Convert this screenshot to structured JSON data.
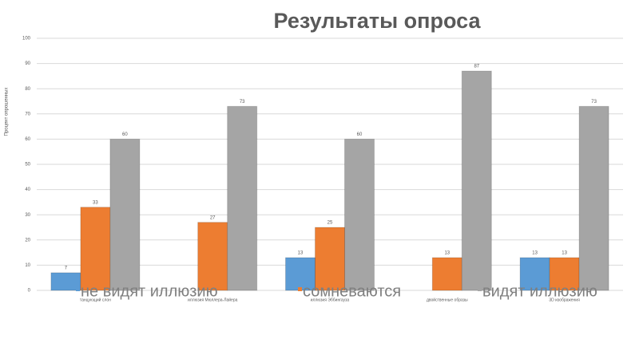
{
  "chart_data": {
    "type": "bar",
    "title": "Результаты опроса",
    "y_label": "Процент опрошенных",
    "categories": [
      "танцующий слон",
      "иллюзия Мюллера-Лайера",
      "иллюзия Эббингауза",
      "двойственные образы",
      "3D изображения"
    ],
    "series": [
      {
        "name": "не видят иллюзию",
        "color": "#5b9bd5",
        "values": [
          7,
          null,
          13,
          null,
          13
        ]
      },
      {
        "name": "сомневаются",
        "color": "#ed7d31",
        "values": [
          33,
          27,
          25,
          13,
          13
        ]
      },
      {
        "name": "видят иллюзию",
        "color": "#a5a5a5",
        "values": [
          60,
          73,
          60,
          87,
          73
        ]
      }
    ],
    "ylim": [
      0,
      100
    ],
    "yticks": [
      0,
      10,
      20,
      30,
      40,
      50,
      60,
      70,
      80,
      90,
      100
    ],
    "grid": true
  }
}
